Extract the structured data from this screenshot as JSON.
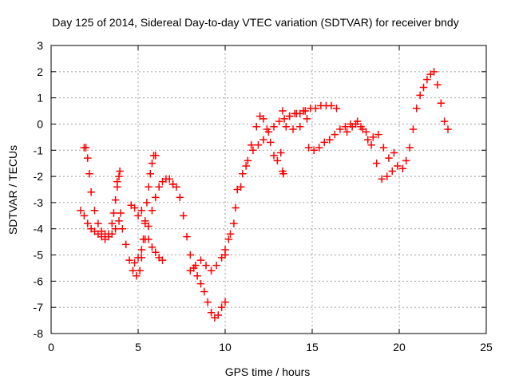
{
  "chart_data": {
    "type": "scatter",
    "title": "Day 125 of 2014, Sidereal Day-to-day VTEC variation (SDTVAR) for receiver bndy",
    "xlabel": "GPS time / hours",
    "ylabel": "SDTVAR / TECUs",
    "xlim": [
      0,
      25
    ],
    "ylim": [
      -8,
      3
    ],
    "xticks": [
      "0",
      "5",
      "10",
      "15",
      "20",
      "25"
    ],
    "yticks": [
      "-8",
      "-7",
      "-6",
      "-5",
      "-4",
      "-3",
      "-2",
      "-1",
      "0",
      "1",
      "2",
      "3"
    ],
    "grid": true,
    "marker": "+",
    "color": "#ff0000",
    "series": [
      {
        "x": [
          1.9,
          2.0,
          2.1,
          2.2,
          2.3,
          2.5,
          2.7,
          2.9,
          3.1,
          3.3,
          3.5,
          3.7,
          3.9,
          4.0
        ],
        "y": [
          -0.9,
          -0.9,
          -1.3,
          -1.9,
          -2.6,
          -3.3,
          -3.8,
          -4.1,
          -4.2,
          -4.3,
          -4.2,
          -4.0,
          -3.7,
          -3.4
        ]
      },
      {
        "x": [
          1.7,
          1.9,
          2.1,
          2.3,
          2.5,
          2.7,
          2.9,
          3.1,
          3.3,
          3.5,
          3.6,
          3.7,
          3.8
        ],
        "y": [
          -3.3,
          -3.5,
          -3.8,
          -4.0,
          -4.1,
          -4.2,
          -4.3,
          -4.4,
          -4.2,
          -3.8,
          -3.4,
          -2.9,
          -2.4
        ]
      },
      {
        "x": [
          3.8,
          3.9,
          3.95
        ],
        "y": [
          -2.2,
          -2.0,
          -1.8
        ]
      },
      {
        "x": [
          4.1,
          4.3,
          4.5,
          4.7,
          4.9,
          5.1,
          5.2,
          5.3,
          5.4,
          5.5,
          5.6,
          5.7,
          5.8,
          5.9,
          6.0
        ],
        "y": [
          -4.0,
          -4.6,
          -5.2,
          -5.6,
          -5.8,
          -5.6,
          -5.1,
          -4.4,
          -3.7,
          -3.0,
          -2.4,
          -1.9,
          -1.5,
          -1.2,
          -1.2
        ]
      },
      {
        "x": [
          4.6,
          4.8,
          5.0,
          5.2,
          5.4,
          5.6,
          5.8,
          6.0,
          6.2,
          6.4
        ],
        "y": [
          -3.1,
          -3.2,
          -3.5,
          -3.3,
          -3.8,
          -4.4,
          -4.7,
          -4.9,
          -5.1,
          -5.2
        ]
      },
      {
        "x": [
          4.8,
          5.0,
          5.2,
          5.4,
          5.6,
          5.8,
          6.0,
          6.2,
          6.4,
          6.6,
          6.8,
          7.0
        ],
        "y": [
          -5.3,
          -5.1,
          -4.8,
          -4.4,
          -3.9,
          -3.3,
          -2.8,
          -2.4,
          -2.2,
          -2.1,
          -2.1,
          -2.3
        ]
      },
      {
        "x": [
          7.0,
          7.2,
          7.4,
          7.6,
          7.8,
          8.0,
          8.2,
          8.4,
          8.6,
          8.8,
          9.0,
          9.2,
          9.4,
          9.6,
          9.8,
          10.0
        ],
        "y": [
          -2.3,
          -2.4,
          -2.8,
          -3.5,
          -4.3,
          -5.0,
          -5.5,
          -5.8,
          -6.1,
          -6.4,
          -6.8,
          -7.2,
          -7.4,
          -7.3,
          -7.0,
          -6.8
        ]
      },
      {
        "x": [
          8.0,
          8.3,
          8.6,
          8.9,
          9.2,
          9.5,
          9.8,
          10.0,
          10.2,
          10.5
        ],
        "y": [
          -5.6,
          -5.4,
          -5.2,
          -5.4,
          -5.6,
          -5.4,
          -5.1,
          -4.8,
          -4.4,
          -3.8
        ]
      },
      {
        "x": [
          10.0,
          10.3,
          10.6,
          10.9,
          11.2,
          11.5,
          11.8,
          12.0,
          12.2,
          12.4,
          12.6,
          12.8,
          13.0,
          13.2
        ],
        "y": [
          -5.0,
          -4.2,
          -3.2,
          -2.4,
          -1.6,
          -0.8,
          -0.1,
          0.3,
          0.2,
          -0.2,
          -0.7,
          -1.2,
          -1.4,
          -1.1
        ]
      },
      {
        "x": [
          10.7,
          11.0,
          11.3,
          11.6,
          11.9,
          12.2,
          12.5,
          12.8,
          13.1,
          13.4,
          13.7,
          14.0,
          14.3,
          14.6,
          14.9,
          15.2,
          15.5,
          15.8,
          16.1,
          16.4
        ],
        "y": [
          -2.5,
          -1.9,
          -1.4,
          -1.0,
          -0.8,
          -0.6,
          -0.3,
          -0.1,
          0.1,
          0.2,
          0.3,
          0.4,
          0.4,
          0.5,
          0.6,
          0.6,
          0.7,
          0.7,
          0.7,
          0.6
        ]
      },
      {
        "x": [
          13.3,
          13.5,
          13.7,
          13.9,
          14.1,
          14.3,
          14.5,
          14.7
        ],
        "y": [
          0.5,
          -0.1,
          0.3,
          -0.2,
          0.4,
          -0.1,
          0.5,
          0.2
        ]
      },
      {
        "x": [
          13.3,
          13.35
        ],
        "y": [
          -1.8,
          -1.9
        ]
      },
      {
        "x": [
          14.8,
          15.1,
          15.4,
          15.7,
          16.0,
          16.3,
          16.6,
          16.9,
          17.2,
          17.5,
          17.8,
          18.1,
          18.4,
          18.7,
          19.0,
          19.3,
          19.6,
          19.9,
          20.2
        ],
        "y": [
          -0.9,
          -1.0,
          -0.9,
          -0.7,
          -0.6,
          -0.4,
          -0.2,
          -0.1,
          0.0,
          0.0,
          -0.1,
          -0.3,
          -0.8,
          -1.5,
          -2.1,
          -2.0,
          -1.8,
          -1.6,
          -1.7
        ]
      },
      {
        "x": [
          17.0,
          17.3,
          17.6,
          17.9,
          18.2,
          18.5,
          18.8,
          19.1,
          19.4,
          19.7
        ],
        "y": [
          -0.3,
          -0.1,
          0.1,
          -0.2,
          -0.6,
          -0.5,
          -0.4,
          -0.9,
          -1.3,
          -1.1
        ]
      },
      {
        "x": [
          20.2,
          20.4,
          20.6,
          20.8,
          21.0,
          21.2,
          21.4,
          21.6,
          21.8,
          22.0,
          22.2,
          22.4,
          22.6,
          22.8
        ],
        "y": [
          -1.7,
          -1.4,
          -0.9,
          -0.2,
          0.6,
          1.1,
          1.4,
          1.7,
          1.9,
          2.0,
          1.5,
          0.8,
          0.1,
          -0.2
        ]
      }
    ]
  }
}
